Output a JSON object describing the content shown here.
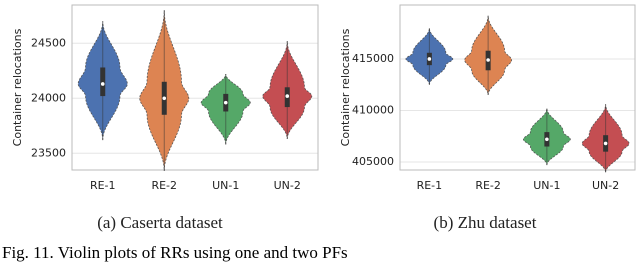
{
  "chart_data": [
    {
      "type": "violin",
      "caption": "(a) Caserta dataset",
      "ylabel": "Container relocations",
      "categories": [
        "RE-1",
        "RE-2",
        "UN-1",
        "UN-2"
      ],
      "colors": [
        "#4c72b0",
        "#dd8452",
        "#55a868",
        "#c44e52"
      ],
      "stats": [
        {
          "min": 23620,
          "q1": 24020,
          "median": 24130,
          "q3": 24280,
          "max": 24700
        },
        {
          "min": 23340,
          "q1": 23850,
          "median": 24000,
          "q3": 24150,
          "max": 24800
        },
        {
          "min": 23580,
          "q1": 23880,
          "median": 23960,
          "q3": 24040,
          "max": 24220
        },
        {
          "min": 23630,
          "q1": 23920,
          "median": 24020,
          "q3": 24100,
          "max": 24520
        }
      ],
      "ylim": [
        23348,
        24848
      ],
      "yticks": [
        23500,
        24000,
        24500
      ],
      "grid": true
    },
    {
      "type": "violin",
      "caption": "(b) Zhu dataset",
      "ylabel": "Container relocations",
      "categories": [
        "RE-1",
        "RE-2",
        "UN-1",
        "UN-2"
      ],
      "colors": [
        "#4c72b0",
        "#dd8452",
        "#55a868",
        "#c44e52"
      ],
      "stats": [
        {
          "min": 412500,
          "q1": 414400,
          "median": 415000,
          "q3": 415600,
          "max": 418000
        },
        {
          "min": 411500,
          "q1": 413900,
          "median": 414900,
          "q3": 415800,
          "max": 419200
        },
        {
          "min": 404700,
          "q1": 406500,
          "median": 407200,
          "q3": 407900,
          "max": 410200
        },
        {
          "min": 404000,
          "q1": 406000,
          "median": 406800,
          "q3": 407600,
          "max": 410600
        }
      ],
      "ylim": [
        404220,
        420240
      ],
      "yticks": [
        405000,
        410000,
        415000
      ],
      "grid": true
    }
  ],
  "figure_caption": "Fig. 11.  Violin plots of RRs using one and two PFs"
}
